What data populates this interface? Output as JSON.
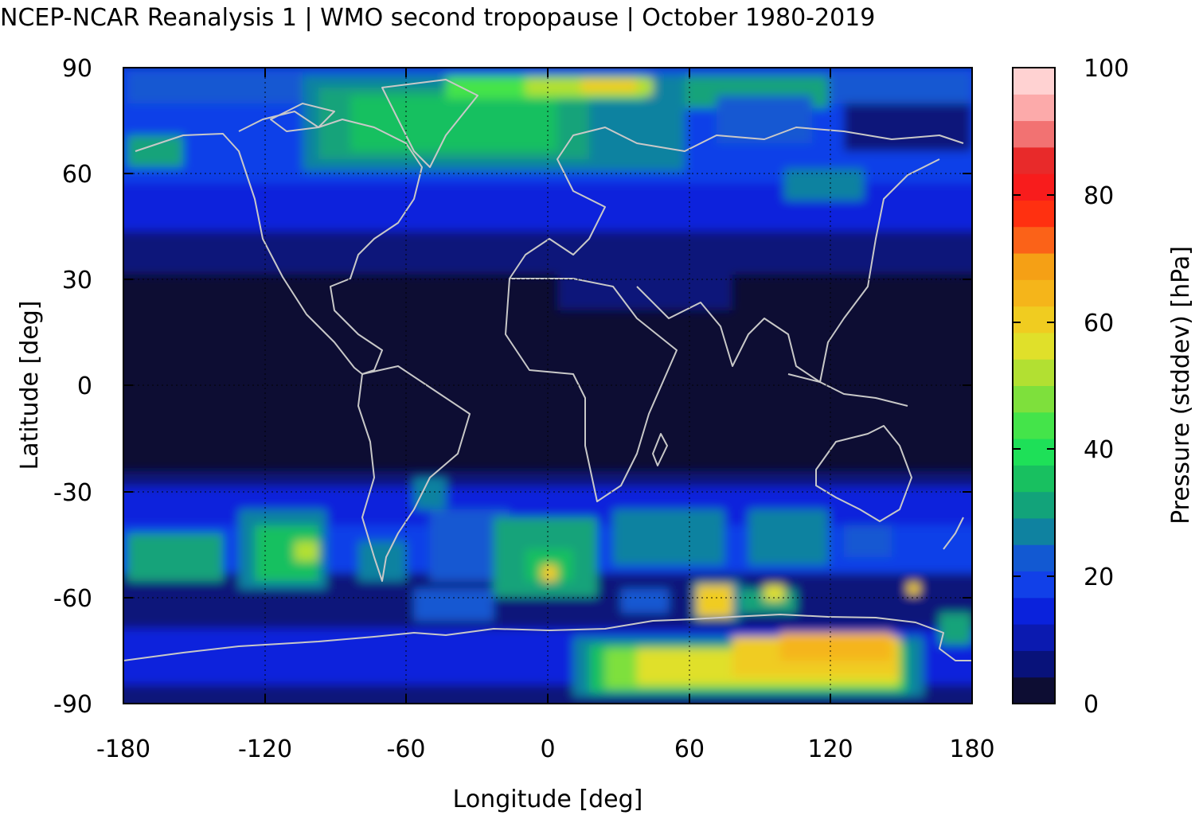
{
  "title": "NCEP-NCAR Reanalysis 1 | WMO second tropopause | October 1980-2019",
  "axes": {
    "x": {
      "label": "Longitude [deg]",
      "ticks": [
        "-180",
        "-120",
        "-60",
        "0",
        "60",
        "120",
        "180"
      ],
      "range": [
        -180,
        180
      ]
    },
    "y": {
      "label": "Latitude [deg]",
      "ticks": [
        "90",
        "60",
        "30",
        "0",
        "-30",
        "-60",
        "-90"
      ],
      "range": [
        -90,
        90
      ]
    }
  },
  "colorbar": {
    "label": "Pressure (stddev) [hPa]",
    "ticks": [
      "100",
      "80",
      "60",
      "40",
      "20",
      "0"
    ],
    "range": [
      0,
      100
    ],
    "levels": [
      "#0d0d33",
      "#08127a",
      "#0b1ab0",
      "#0a22dc",
      "#1140e8",
      "#1259d2",
      "#0f82a0",
      "#12a37a",
      "#18c060",
      "#1ee058",
      "#44e44a",
      "#7ee03c",
      "#b2e032",
      "#e0e02a",
      "#f0cc20",
      "#f5b51a",
      "#f5a015",
      "#fb6218",
      "#ff3010",
      "#f81c1c",
      "#e82a2a",
      "#f27272",
      "#fcaaaa",
      "#ffd2d2"
    ]
  },
  "colors": {
    "background_field": "#0d0d33",
    "coastline": "#c8c8c8",
    "grid": "#000000"
  }
}
